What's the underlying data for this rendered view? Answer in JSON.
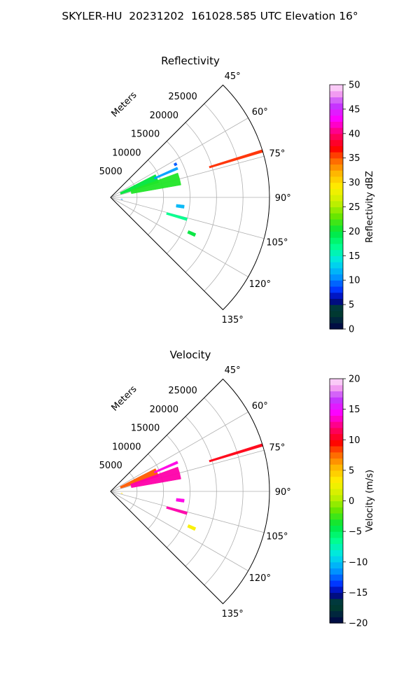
{
  "suptitle": "SKYLER-HU  20231202  161028.585 UTC Elevation 16°",
  "chart_data": [
    {
      "type": "scatter",
      "projection": "polar-sector",
      "title": "Reflectivity",
      "radial_label": "Meters",
      "radial_ticks": [
        5000,
        10000,
        15000,
        20000,
        25000
      ],
      "radial_tick_labels": [
        "5000",
        "10000",
        "15000",
        "20000",
        "25000"
      ],
      "rlim": [
        0,
        30000
      ],
      "theta_ticks": [
        45,
        60,
        75,
        90,
        105,
        120,
        135
      ],
      "theta_tick_labels": [
        "45°",
        "60°",
        "75°",
        "90°",
        "105°",
        "120°",
        "135°"
      ],
      "thetalim": [
        45,
        135
      ],
      "grid": true,
      "colorbar": {
        "label": "Reflectivity dBZ",
        "range": [
          0,
          50
        ],
        "ticks": [
          0,
          5,
          10,
          15,
          20,
          25,
          30,
          35,
          40,
          45,
          50
        ],
        "tick_labels": [
          "0",
          "5",
          "10",
          "15",
          "20",
          "25",
          "30",
          "35",
          "40",
          "45",
          "50"
        ]
      },
      "echoes": [
        {
          "theta_deg": [
            63,
            73
          ],
          "r_m": [
            2000,
            9500
          ],
          "value": 20
        },
        {
          "theta_deg": [
            70,
            80
          ],
          "r_m": [
            4000,
            13500
          ],
          "value": 21
        },
        {
          "theta_deg": [
            65.5,
            67.5
          ],
          "r_m": [
            9000,
            13800
          ],
          "value": 11
        },
        {
          "theta_deg": [
            62,
            64
          ],
          "r_m": [
            13500,
            14000
          ],
          "value": 9
        },
        {
          "theta_deg": [
            72.5,
            73.5
          ],
          "r_m": [
            19500,
            30000
          ],
          "value": 36
        },
        {
          "theta_deg": [
            96,
            98.5
          ],
          "r_m": [
            12500,
            14000
          ],
          "value": 12
        },
        {
          "theta_deg": [
            99,
            100.5
          ],
          "r_m": [
            2000,
            2300
          ],
          "value": 10
        },
        {
          "theta_deg": [
            105,
            107
          ],
          "r_m": [
            11000,
            15000
          ],
          "value": 17
        },
        {
          "theta_deg": [
            113,
            115
          ],
          "r_m": [
            16000,
            17500
          ],
          "value": 20
        }
      ]
    },
    {
      "type": "scatter",
      "projection": "polar-sector",
      "title": "Velocity",
      "radial_label": "Meters",
      "radial_ticks": [
        5000,
        10000,
        15000,
        20000,
        25000
      ],
      "radial_tick_labels": [
        "5000",
        "10000",
        "15000",
        "20000",
        "25000"
      ],
      "rlim": [
        0,
        30000
      ],
      "theta_ticks": [
        45,
        60,
        75,
        90,
        105,
        120,
        135
      ],
      "theta_tick_labels": [
        "45°",
        "60°",
        "75°",
        "90°",
        "105°",
        "120°",
        "135°"
      ],
      "thetalim": [
        45,
        135
      ],
      "grid": true,
      "colorbar": {
        "label": "Velocity (m/s)",
        "range": [
          -20,
          20
        ],
        "ticks": [
          -20,
          -15,
          -10,
          -5,
          0,
          5,
          10,
          15,
          20
        ],
        "tick_labels": [
          "−20",
          "−15",
          "−10",
          "−5",
          "0",
          "5",
          "10",
          "15",
          "20"
        ]
      },
      "echoes": [
        {
          "theta_deg": [
            63,
            73
          ],
          "r_m": [
            2000,
            9500
          ],
          "value": 8
        },
        {
          "theta_deg": [
            70,
            80
          ],
          "r_m": [
            4000,
            13500
          ],
          "value": 13
        },
        {
          "theta_deg": [
            65.5,
            67.5
          ],
          "r_m": [
            9000,
            13800
          ],
          "value": 14
        },
        {
          "theta_deg": [
            72.5,
            73.5
          ],
          "r_m": [
            19500,
            30000
          ],
          "value": 10
        },
        {
          "theta_deg": [
            96,
            98.5
          ],
          "r_m": [
            12500,
            14000
          ],
          "value": 14
        },
        {
          "theta_deg": [
            99,
            100.5
          ],
          "r_m": [
            2000,
            2300
          ],
          "value": 4
        },
        {
          "theta_deg": [
            105,
            107
          ],
          "r_m": [
            11000,
            15000
          ],
          "value": 13
        },
        {
          "theta_deg": [
            113,
            115
          ],
          "r_m": [
            16000,
            17500
          ],
          "value": 3
        }
      ]
    }
  ]
}
